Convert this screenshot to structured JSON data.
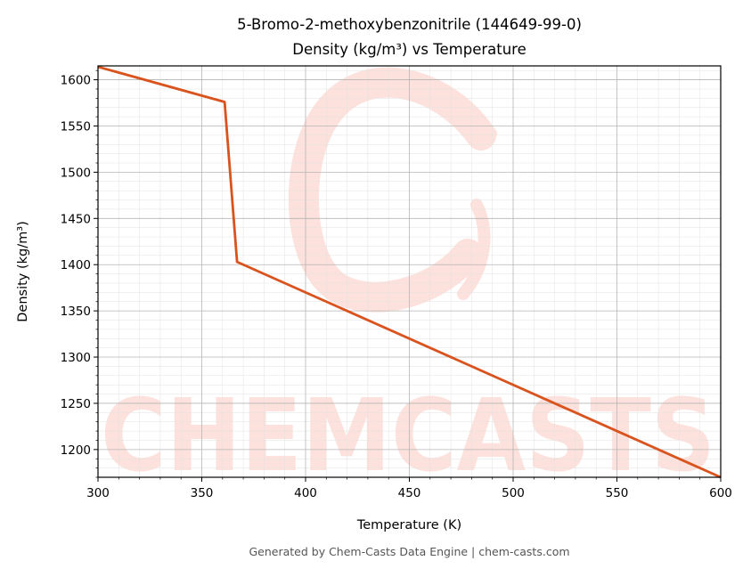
{
  "chart_data": {
    "type": "line",
    "title_line1": "5-Bromo-2-methoxybenzonitrile (144649-99-0)",
    "title_line2": "Density (kg/m³) vs Temperature",
    "xlabel": "Temperature (K)",
    "ylabel": "Density (kg/m³)",
    "xlim": [
      300,
      600
    ],
    "ylim": [
      1170,
      1615
    ],
    "x_ticks": [
      300,
      350,
      400,
      450,
      500,
      550,
      600
    ],
    "y_ticks": [
      1200,
      1250,
      1300,
      1350,
      1400,
      1450,
      1500,
      1550,
      1600
    ],
    "grid": true,
    "series": [
      {
        "color": "#d9531e",
        "x": [
          300,
          361,
          367,
          600
        ],
        "y": [
          1614,
          1576,
          1403,
          1170
        ]
      }
    ]
  },
  "watermark": {
    "text": "CHEMCASTS",
    "color": "#fde1dc"
  },
  "footer": {
    "text": "Generated by Chem-Casts Data Engine | chem-casts.com"
  }
}
